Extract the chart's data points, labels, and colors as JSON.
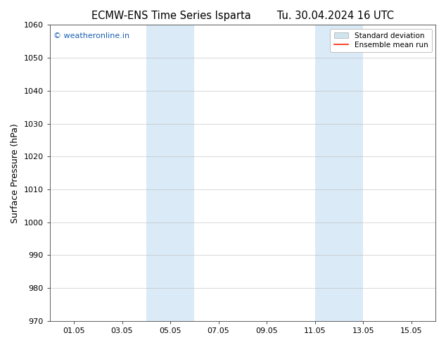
{
  "title_left": "ECMW-ENS Time Series Isparta",
  "title_right": "Tu. 30.04.2024 16 UTC",
  "ylabel": "Surface Pressure (hPa)",
  "ylim": [
    970,
    1060
  ],
  "yticks": [
    970,
    980,
    990,
    1000,
    1010,
    1020,
    1030,
    1040,
    1050,
    1060
  ],
  "xtick_labels": [
    "01.05",
    "03.05",
    "05.05",
    "07.05",
    "09.05",
    "11.05",
    "13.05",
    "15.05"
  ],
  "xtick_positions": [
    1,
    3,
    5,
    7,
    9,
    11,
    13,
    15
  ],
  "xlim": [
    0,
    16
  ],
  "shade_regions": [
    {
      "start": 4,
      "end": 6
    },
    {
      "start": 11,
      "end": 13
    }
  ],
  "shade_color": "#daeaf6",
  "background_color": "#ffffff",
  "plot_bg_color": "#ffffff",
  "watermark_text": "© weatheronline.in",
  "watermark_color": "#1a5fb4",
  "legend_std_dev_color": "#d0e4f0",
  "legend_mean_color": "#ff2200",
  "title_fontsize": 10.5,
  "ylabel_fontsize": 9,
  "tick_fontsize": 8,
  "watermark_fontsize": 8,
  "legend_fontsize": 7.5
}
